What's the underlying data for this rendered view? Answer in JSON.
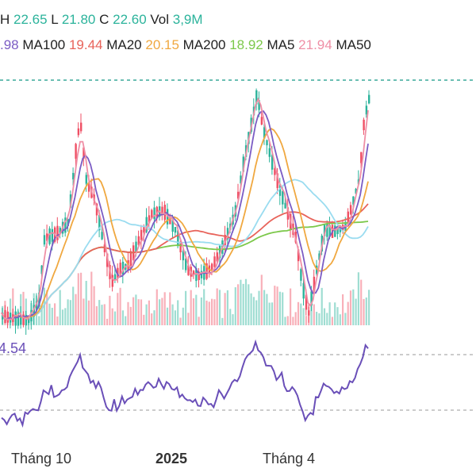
{
  "header": {
    "row1": [
      {
        "label": "H",
        "value": "22.65"
      },
      {
        "label": "L",
        "value": "21.80"
      },
      {
        "label": "C",
        "value": "22.60"
      },
      {
        "label": "Vol",
        "value": "3,9M"
      }
    ],
    "row2_prefix": ".98",
    "row2": [
      {
        "label": "MA100",
        "value": "19.44",
        "color": "#e8635a"
      },
      {
        "label": "MA20",
        "value": "20.15",
        "color": "#f0a840"
      },
      {
        "label": "MA200",
        "value": "18.92",
        "color": "#7cc84a"
      },
      {
        "label": "MA5",
        "value": "21.94",
        "color": "#ef8fa6"
      },
      {
        "label": "MA50",
        "value": "",
        "color": "#9adcf0"
      }
    ]
  },
  "colors": {
    "up": "#2bb39b",
    "down": "#ef4f64",
    "value_text": "#2bb39b",
    "prefix_color": "#7b5cc4",
    "ma10": "#7b5cc4",
    "rsi": "#6a4fb8",
    "ref_line": "#3aa89a"
  },
  "chart_data": {
    "type": "candlestick",
    "x_ticks": [
      "Tháng 10",
      "2025",
      "Tháng 4"
    ],
    "price_ref_line": 22.65,
    "ohlc_summary": {
      "high": 22.65,
      "low": 21.8,
      "close": 22.6,
      "volume": "3,9M"
    },
    "series": [
      {
        "name": "MA100",
        "last": 19.44
      },
      {
        "name": "MA20",
        "last": 20.15
      },
      {
        "name": "MA200",
        "last": 18.92
      },
      {
        "name": "MA5",
        "last": 21.94
      },
      {
        "name": "MA50"
      }
    ],
    "oscillator": {
      "value_label": "4.54"
    }
  }
}
